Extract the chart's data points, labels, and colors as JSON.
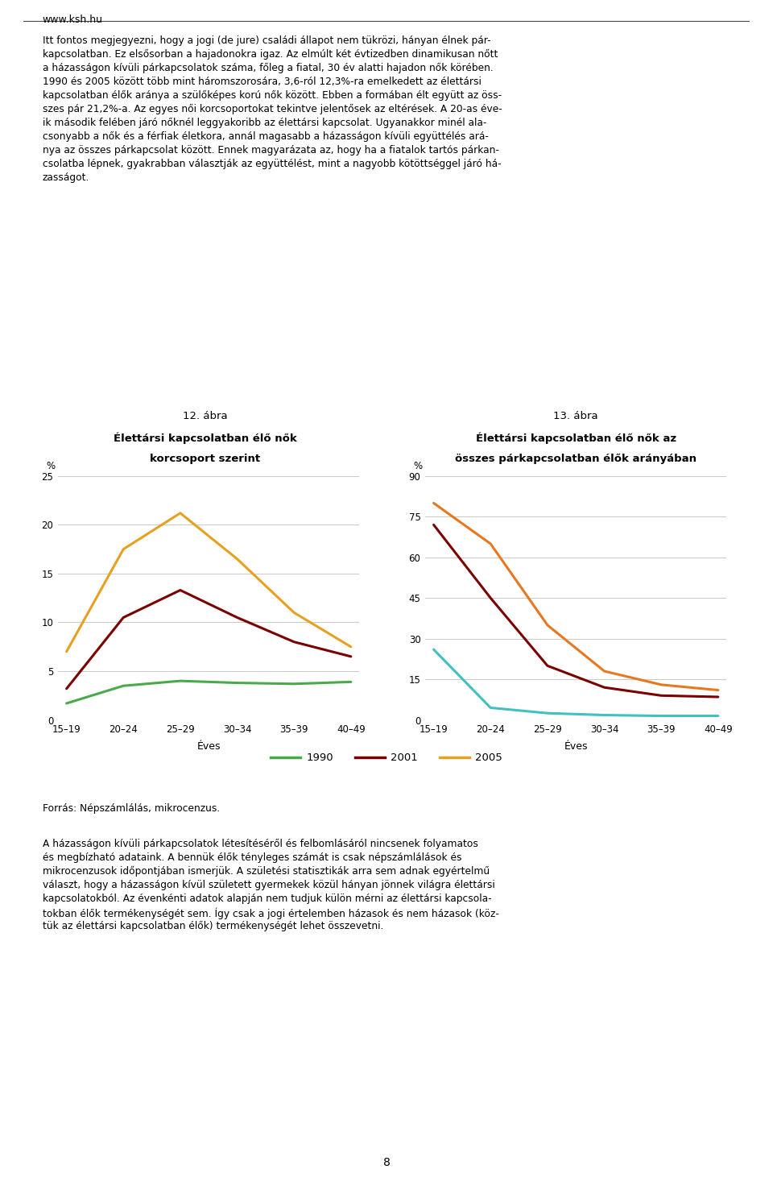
{
  "page_header": "www.ksh.hu",
  "main_text_lines": [
    "Itt fontos megjegyezni, hogy a jogi (de jure) családi állapot nem tükrözi, hányan élnek pár-",
    "kapcsolatban. Ez elsősorban a hajadonokra igaz. Az elmúlt két évtizedben dinamikusan nőtt",
    "a házasságon kívüli párkapcsolatok száma, főleg a fiatal, 30 év alatti hajadon nők körében.",
    "1990 és 2005 között több mint háromszorosára, 3,6-ról 12,3%-ra emelkedett az élettársi",
    "kapcsolatban élők aránya a szülőképes korú nők között. Ebben a formában élt együtt az öss-",
    "szes pár 21,2%-a. Az egyes női korcsoportokat tekintve jelentősek az eltérések. A 20-as éve-",
    "ik második felében járó nőknél leggyakoribb az élettársi kapcsolat. Ugyanakkor minél ala-",
    "csonyabb a nők és a férfiak életkora, annál magasabb a házasságon kívüli együttélés ará-",
    "nya az összes párkapcsolat között. Ennek magyarázata az, hogy ha a fiatalok tartós párkan-",
    "csolatba lépnek, gyakrabban választják az együttélést, mint a nagyobb kötöttséggel járó há-",
    "zasságot."
  ],
  "chart12_title_line1": "12. ábra",
  "chart12_title_line2": "Élettársi kapcsolatban élő nők",
  "chart12_title_line3": "korcsoport szerint",
  "chart13_title_line1": "13. ábra",
  "chart13_title_line2": "Élettársi kapcsolatban élő nők az",
  "chart13_title_line3": "összes párkapcsolatban élők arányában",
  "age_groups": [
    "15–19",
    "20–24",
    "25–29",
    "30–34",
    "35–39",
    "40–49"
  ],
  "chart12_1990": [
    1.7,
    3.5,
    4.0,
    3.8,
    3.7,
    3.9
  ],
  "chart12_2001": [
    3.2,
    10.5,
    13.3,
    10.5,
    8.0,
    6.5
  ],
  "chart12_2005": [
    7.0,
    17.5,
    21.2,
    16.5,
    11.0,
    7.5
  ],
  "chart13_1990": [
    26.0,
    4.5,
    2.5,
    1.8,
    1.5,
    1.5
  ],
  "chart13_2001": [
    72.0,
    45.0,
    20.0,
    12.0,
    9.0,
    8.5
  ],
  "chart13_2005": [
    80.0,
    65.0,
    35.0,
    18.0,
    13.0,
    11.0
  ],
  "color_1990_chart12": "#4aaa4a",
  "color_2001_chart12": "#7b0000",
  "color_2005_chart12": "#e8a020",
  "color_1990_chart13": "#40c0c0",
  "color_2001_chart13": "#7b0000",
  "color_2005_chart13": "#e87820",
  "chart12_ylim": [
    0,
    25
  ],
  "chart12_yticks": [
    0,
    5,
    10,
    15,
    20,
    25
  ],
  "chart13_ylim": [
    0,
    90
  ],
  "chart13_yticks": [
    0,
    15,
    30,
    45,
    60,
    75,
    90
  ],
  "xlabel": "Éves",
  "ylabel": "%",
  "legend_labels": [
    "1990",
    "2001",
    "2005"
  ],
  "footer_text": "Forrás: Népszámlálás, mikrocenzus.",
  "bottom_text_lines": [
    "A házasságon kívüli párkapcsolatok létesítéséről és felbomlásáról nincsenek folyamatos",
    "és megbízható adataink. A bennük élők tényleges számát is csak népszámlálások és",
    "mikrocenzusok időpontjában ismerjük. A születési statisztikák arra sem adnak egyértelmű",
    "választ, hogy a házasságon kívül született gyermekek közül hányan jönnek világra élettársi",
    "kapcsolatokból. Az évenkénti adatok alapján nem tudjuk külön mérni az élettársi kapcsola-",
    "tokban élők termékenységét sem. Így csak a jogi értelemben házasok és nem házasok (köz-",
    "tük az élettársi kapcsolatban élők) termékenységét lehet összevetni."
  ],
  "page_number": "8",
  "background_color": "#ffffff",
  "text_color": "#000000",
  "grid_color": "#cccccc",
  "line_width": 2.2
}
